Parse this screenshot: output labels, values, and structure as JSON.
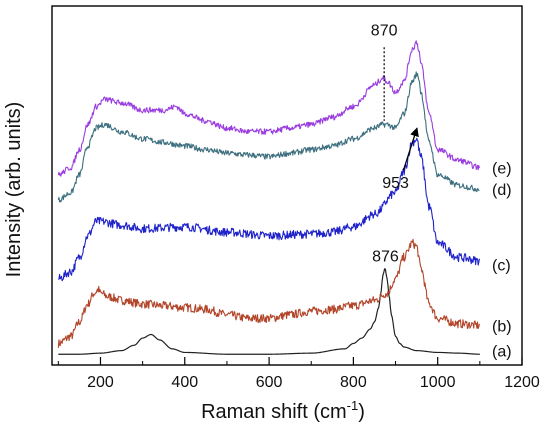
{
  "chart_data": {
    "type": "line",
    "title": "",
    "xlabel": "Raman shift (cm",
    "xlabel_sup": "-1",
    "xlabel_close": ")",
    "ylabel": "Intensity (arb. units)",
    "xlim": [
      85,
      1200
    ],
    "ylim": [
      0,
      1
    ],
    "y_ticks_shown": false,
    "x_ticks": [
      200,
      400,
      600,
      800,
      1000,
      1200
    ],
    "x_tick_labels": [
      "200",
      "400",
      "600",
      "800",
      "1000",
      "1200"
    ],
    "legend": "none",
    "grid": false,
    "annotations": [
      {
        "text": "870",
        "x": 873,
        "y": 0.935,
        "style": "dotted-vertical-line",
        "x_line": 873,
        "y_from": 0.885,
        "y_to": 0.68
      },
      {
        "text": "953",
        "x": 900,
        "y": 0.51,
        "style": "arrow",
        "arrow_to_x": 951,
        "arrow_to_y": 0.66
      },
      {
        "text": "876",
        "x": 876,
        "y": 0.305,
        "style": "label"
      }
    ],
    "series": [
      {
        "name": "(a)",
        "color": "#222222",
        "noise": 0,
        "label_y": 0.04,
        "x": [
          100,
          150,
          200,
          250,
          280,
          300,
          320,
          340,
          370,
          400,
          500,
          600,
          700,
          780,
          800,
          820,
          840,
          850,
          860,
          865,
          870,
          875,
          880,
          885,
          890,
          900,
          910,
          920,
          950,
          1000,
          1050,
          1100
        ],
        "y": [
          0.03,
          0.03,
          0.033,
          0.04,
          0.055,
          0.075,
          0.085,
          0.07,
          0.045,
          0.035,
          0.03,
          0.03,
          0.033,
          0.045,
          0.06,
          0.075,
          0.1,
          0.12,
          0.16,
          0.2,
          0.25,
          0.27,
          0.24,
          0.19,
          0.14,
          0.08,
          0.06,
          0.05,
          0.04,
          0.035,
          0.033,
          0.03
        ]
      },
      {
        "name": "(b)",
        "color": "#b2452a",
        "noise": 0.012,
        "label_y": 0.11,
        "x": [
          100,
          130,
          150,
          170,
          185,
          195,
          200,
          220,
          250,
          300,
          350,
          400,
          450,
          500,
          550,
          600,
          650,
          700,
          750,
          800,
          850,
          880,
          900,
          920,
          940,
          950,
          960,
          980,
          1000,
          1050,
          1100
        ],
        "y": [
          0.06,
          0.08,
          0.12,
          0.17,
          0.2,
          0.21,
          0.2,
          0.19,
          0.18,
          0.17,
          0.165,
          0.16,
          0.155,
          0.14,
          0.13,
          0.13,
          0.14,
          0.15,
          0.155,
          0.165,
          0.18,
          0.2,
          0.24,
          0.3,
          0.34,
          0.33,
          0.27,
          0.17,
          0.13,
          0.115,
          0.11
        ]
      },
      {
        "name": "(c)",
        "color": "#1f22c9",
        "noise": 0.012,
        "label_y": 0.28,
        "x": [
          100,
          130,
          150,
          170,
          190,
          200,
          250,
          300,
          400,
          500,
          600,
          700,
          750,
          800,
          850,
          900,
          920,
          940,
          950,
          960,
          980,
          1000,
          1050,
          1100
        ],
        "y": [
          0.24,
          0.26,
          0.3,
          0.36,
          0.4,
          0.4,
          0.39,
          0.38,
          0.385,
          0.37,
          0.36,
          0.365,
          0.37,
          0.385,
          0.42,
          0.48,
          0.54,
          0.62,
          0.63,
          0.58,
          0.44,
          0.34,
          0.3,
          0.29
        ]
      },
      {
        "name": "(d)",
        "color": "#3d6f7f",
        "noise": 0.008,
        "label_y": 0.49,
        "x": [
          100,
          130,
          150,
          170,
          190,
          210,
          250,
          300,
          350,
          400,
          450,
          500,
          550,
          600,
          650,
          700,
          750,
          800,
          850,
          870,
          880,
          900,
          920,
          940,
          950,
          955,
          960,
          980,
          1000,
          1050,
          1100
        ],
        "y": [
          0.46,
          0.48,
          0.53,
          0.61,
          0.66,
          0.67,
          0.65,
          0.63,
          0.62,
          0.61,
          0.6,
          0.59,
          0.585,
          0.58,
          0.59,
          0.6,
          0.61,
          0.63,
          0.66,
          0.67,
          0.67,
          0.66,
          0.7,
          0.79,
          0.81,
          0.8,
          0.76,
          0.62,
          0.53,
          0.5,
          0.49
        ]
      },
      {
        "name": "(e)",
        "color": "#9a3de0",
        "noise": 0.008,
        "label_y": 0.55,
        "x": [
          100,
          130,
          150,
          170,
          190,
          210,
          250,
          300,
          350,
          380,
          400,
          450,
          500,
          550,
          600,
          650,
          700,
          750,
          800,
          850,
          870,
          880,
          900,
          920,
          940,
          950,
          955,
          960,
          980,
          1000,
          1050,
          1100
        ],
        "y": [
          0.53,
          0.55,
          0.6,
          0.67,
          0.72,
          0.74,
          0.73,
          0.71,
          0.71,
          0.72,
          0.7,
          0.68,
          0.66,
          0.65,
          0.65,
          0.66,
          0.67,
          0.69,
          0.72,
          0.78,
          0.8,
          0.79,
          0.76,
          0.79,
          0.88,
          0.9,
          0.88,
          0.84,
          0.7,
          0.6,
          0.57,
          0.55
        ]
      }
    ]
  }
}
